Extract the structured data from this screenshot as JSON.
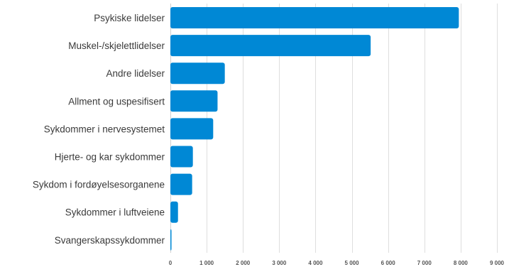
{
  "chart_data": {
    "type": "bar",
    "orientation": "horizontal",
    "categories": [
      "Psykiske lidelser",
      "Muskel-/skjelettlidelser",
      "Andre lidelser",
      "Allment og uspesifisert",
      "Sykdommer i nervesystemet",
      "Hjerte- og kar sykdommer",
      "Sykdom i fordøyelsesorganene",
      "Sykdommer i luftveiene",
      "Svangerskapssykdommer"
    ],
    "values": [
      7950,
      5520,
      1500,
      1300,
      1180,
      620,
      600,
      210,
      30
    ],
    "xlim": [
      0,
      9000
    ],
    "xticks": [
      0,
      1000,
      2000,
      3000,
      4000,
      5000,
      6000,
      7000,
      8000,
      9000
    ],
    "xtick_labels": [
      "0",
      "1 000",
      "2 000",
      "3 000",
      "4 000",
      "5 000",
      "6 000",
      "7 000",
      "8 000",
      "9 000"
    ],
    "title": "",
    "xlabel": "",
    "ylabel": "",
    "grid": true,
    "bar_color": "#0088d5"
  }
}
